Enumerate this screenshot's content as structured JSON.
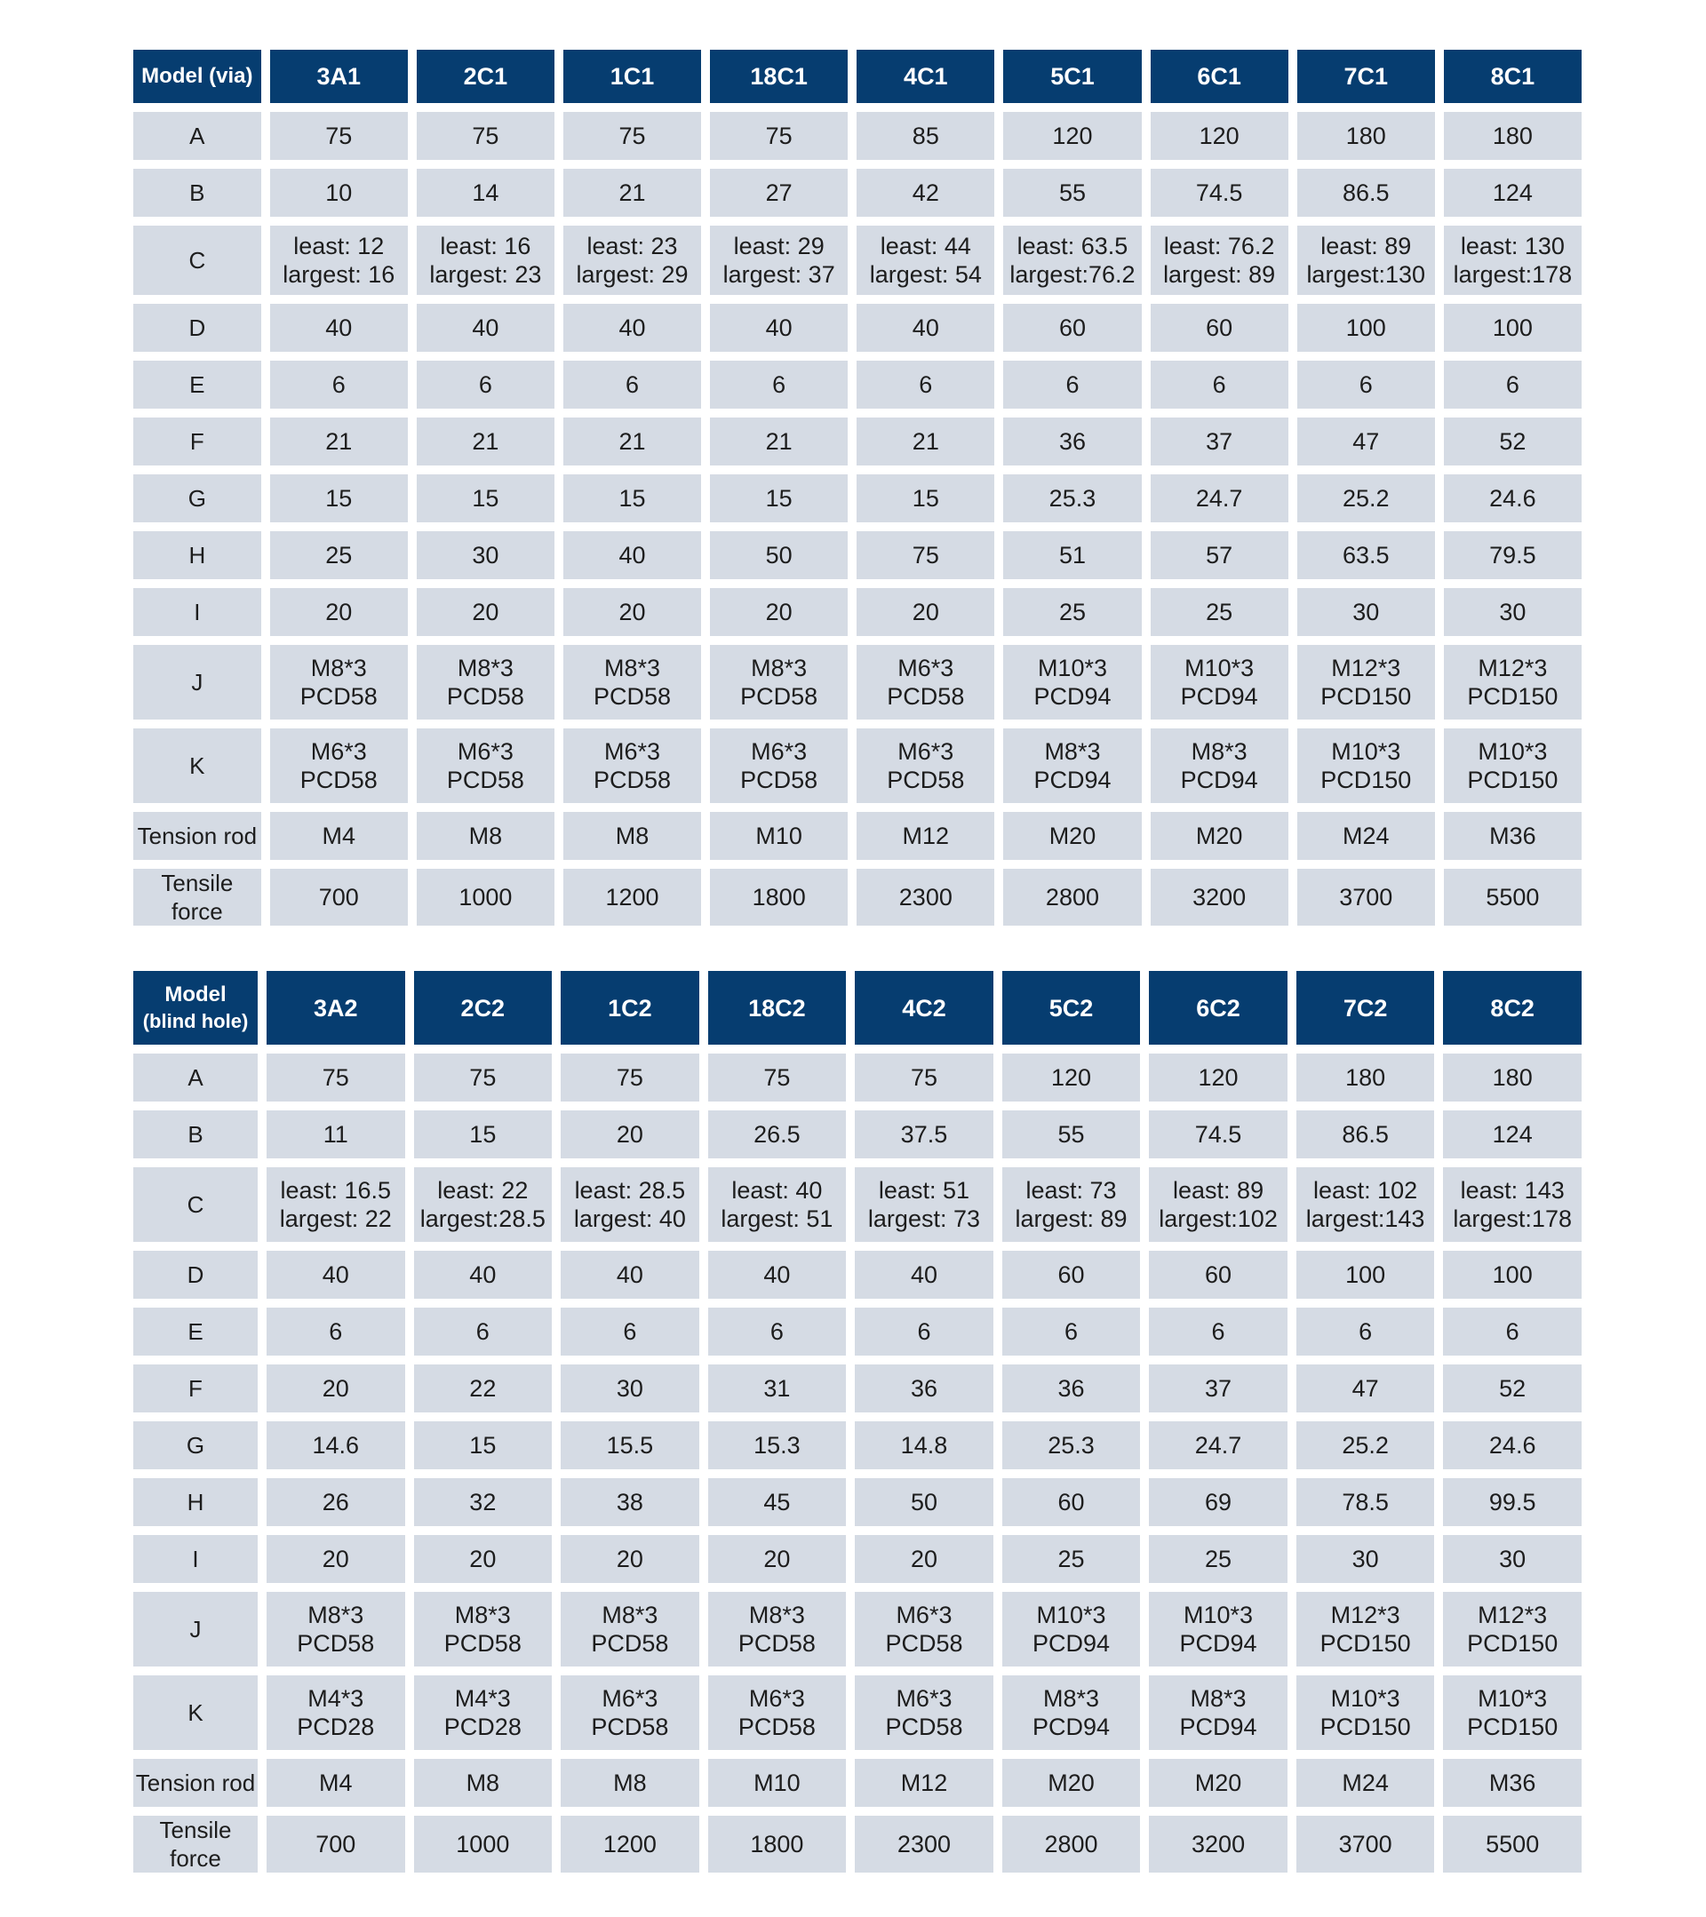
{
  "tables": [
    {
      "header": [
        "Model  (via)",
        "3A1",
        "2C1",
        "1C1",
        "18C1",
        "4C1",
        "5C1",
        "6C1",
        "7C1",
        "8C1"
      ],
      "rows": [
        {
          "label": "A",
          "cells": [
            "75",
            "75",
            "75",
            "75",
            "85",
            "120",
            "120",
            "180",
            "180"
          ]
        },
        {
          "label": "B",
          "cells": [
            "10",
            "14",
            "21",
            "27",
            "42",
            "55",
            "74.5",
            "86.5",
            "124"
          ]
        },
        {
          "label": "C",
          "cells": [
            [
              "least: 12",
              "largest: 16"
            ],
            [
              "least: 16",
              "largest: 23"
            ],
            [
              "least: 23",
              "largest: 29"
            ],
            [
              "least: 29",
              "largest: 37"
            ],
            [
              "least: 44",
              "largest: 54"
            ],
            [
              "least: 63.5",
              "largest:76.2"
            ],
            [
              "least: 76.2",
              "largest: 89"
            ],
            [
              "least: 89",
              "largest:130"
            ],
            [
              "least: 130",
              "largest:178"
            ]
          ]
        },
        {
          "label": "D",
          "cells": [
            "40",
            "40",
            "40",
            "40",
            "40",
            "60",
            "60",
            "100",
            "100"
          ]
        },
        {
          "label": "E",
          "cells": [
            "6",
            "6",
            "6",
            "6",
            "6",
            "6",
            "6",
            "6",
            "6"
          ]
        },
        {
          "label": "F",
          "cells": [
            "21",
            "21",
            "21",
            "21",
            "21",
            "36",
            "37",
            "47",
            "52"
          ]
        },
        {
          "label": "G",
          "cells": [
            "15",
            "15",
            "15",
            "15",
            "15",
            "25.3",
            "24.7",
            "25.2",
            "24.6"
          ]
        },
        {
          "label": "H",
          "cells": [
            "25",
            "30",
            "40",
            "50",
            "75",
            "51",
            "57",
            "63.5",
            "79.5"
          ]
        },
        {
          "label": "I",
          "cells": [
            "20",
            "20",
            "20",
            "20",
            "20",
            "25",
            "25",
            "30",
            "30"
          ]
        },
        {
          "label": "J",
          "cells": [
            [
              "M8*3",
              "PCD58"
            ],
            [
              "M8*3",
              "PCD58"
            ],
            [
              "M8*3",
              "PCD58"
            ],
            [
              "M8*3",
              "PCD58"
            ],
            [
              "M6*3",
              "PCD58"
            ],
            [
              "M10*3",
              "PCD94"
            ],
            [
              "M10*3",
              "PCD94"
            ],
            [
              "M12*3",
              "PCD150"
            ],
            [
              "M12*3",
              "PCD150"
            ]
          ]
        },
        {
          "label": "K",
          "cells": [
            [
              "M6*3",
              "PCD58"
            ],
            [
              "M6*3",
              "PCD58"
            ],
            [
              "M6*3",
              "PCD58"
            ],
            [
              "M6*3",
              "PCD58"
            ],
            [
              "M6*3",
              "PCD58"
            ],
            [
              "M8*3",
              "PCD94"
            ],
            [
              "M8*3",
              "PCD94"
            ],
            [
              "M10*3",
              "PCD150"
            ],
            [
              "M10*3",
              "PCD150"
            ]
          ]
        },
        {
          "label": "Tension rod",
          "cells": [
            "M4",
            "M8",
            "M8",
            "M10",
            "M12",
            "M20",
            "M20",
            "M24",
            "M36"
          ]
        },
        {
          "label": "Tensile force",
          "cells": [
            "700",
            "1000",
            "1200",
            "1800",
            "2300",
            "2800",
            "3200",
            "3700",
            "5500"
          ]
        }
      ]
    },
    {
      "header": [
        "Model\n(blind hole)",
        "3A2",
        "2C2",
        "1C2",
        "18C2",
        "4C2",
        "5C2",
        "6C2",
        "7C2",
        "8C2"
      ],
      "rows": [
        {
          "label": "A",
          "cells": [
            "75",
            "75",
            "75",
            "75",
            "75",
            "120",
            "120",
            "180",
            "180"
          ]
        },
        {
          "label": "B",
          "cells": [
            "11",
            "15",
            "20",
            "26.5",
            "37.5",
            "55",
            "74.5",
            "86.5",
            "124"
          ]
        },
        {
          "label": "C",
          "cells": [
            [
              "least: 16.5",
              "largest: 22"
            ],
            [
              "least: 22",
              "largest:28.5"
            ],
            [
              "least: 28.5",
              "largest: 40"
            ],
            [
              "least: 40",
              "largest: 51"
            ],
            [
              "least: 51",
              "largest: 73"
            ],
            [
              "least: 73",
              "largest: 89"
            ],
            [
              "least: 89",
              "largest:102"
            ],
            [
              "least: 102",
              "largest:143"
            ],
            [
              "least: 143",
              "largest:178"
            ]
          ]
        },
        {
          "label": "D",
          "cells": [
            "40",
            "40",
            "40",
            "40",
            "40",
            "60",
            "60",
            "100",
            "100"
          ]
        },
        {
          "label": "E",
          "cells": [
            "6",
            "6",
            "6",
            "6",
            "6",
            "6",
            "6",
            "6",
            "6"
          ]
        },
        {
          "label": "F",
          "cells": [
            "20",
            "22",
            "30",
            "31",
            "36",
            "36",
            "37",
            "47",
            "52"
          ]
        },
        {
          "label": "G",
          "cells": [
            "14.6",
            "15",
            "15.5",
            "15.3",
            "14.8",
            "25.3",
            "24.7",
            "25.2",
            "24.6"
          ]
        },
        {
          "label": "H",
          "cells": [
            "26",
            "32",
            "38",
            "45",
            "50",
            "60",
            "69",
            "78.5",
            "99.5"
          ]
        },
        {
          "label": "I",
          "cells": [
            "20",
            "20",
            "20",
            "20",
            "20",
            "25",
            "25",
            "30",
            "30"
          ]
        },
        {
          "label": "J",
          "cells": [
            [
              "M8*3",
              "PCD58"
            ],
            [
              "M8*3",
              "PCD58"
            ],
            [
              "M8*3",
              "PCD58"
            ],
            [
              "M8*3",
              "PCD58"
            ],
            [
              "M6*3",
              "PCD58"
            ],
            [
              "M10*3",
              "PCD94"
            ],
            [
              "M10*3",
              "PCD94"
            ],
            [
              "M12*3",
              "PCD150"
            ],
            [
              "M12*3",
              "PCD150"
            ]
          ]
        },
        {
          "label": "K",
          "cells": [
            [
              "M4*3",
              "PCD28"
            ],
            [
              "M4*3",
              "PCD28"
            ],
            [
              "M6*3",
              "PCD58"
            ],
            [
              "M6*3",
              "PCD58"
            ],
            [
              "M6*3",
              "PCD58"
            ],
            [
              "M8*3",
              "PCD94"
            ],
            [
              "M8*3",
              "PCD94"
            ],
            [
              "M10*3",
              "PCD150"
            ],
            [
              "M10*3",
              "PCD150"
            ]
          ]
        },
        {
          "label": "Tension rod",
          "cells": [
            "M4",
            "M8",
            "M8",
            "M10",
            "M12",
            "M20",
            "M20",
            "M24",
            "M36"
          ]
        },
        {
          "label": "Tensile force",
          "cells": [
            "700",
            "1000",
            "1200",
            "1800",
            "2300",
            "2800",
            "3200",
            "3700",
            "5500"
          ]
        }
      ]
    }
  ],
  "colors": {
    "header_bg": "#063d70",
    "header_text": "#ffffff",
    "cell_bg": "#d5dbe4",
    "cell_text": "#1d1d1d"
  }
}
